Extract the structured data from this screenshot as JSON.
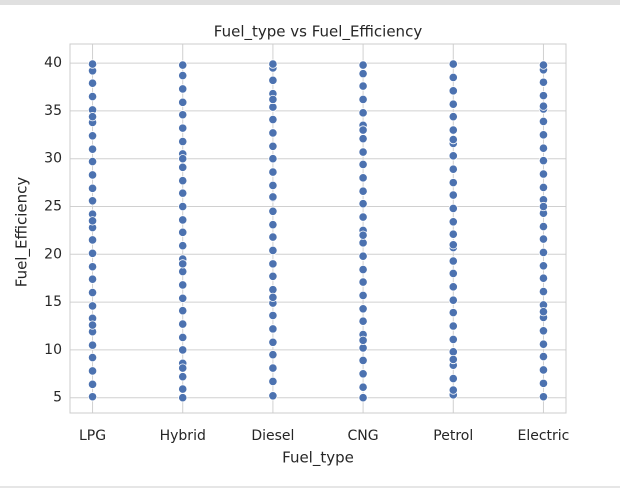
{
  "chart_data": {
    "type": "scatter",
    "title": "Fuel_type vs Fuel_Efficiency",
    "x_label": "Fuel_type",
    "y_label": "Fuel_Efficiency",
    "categories": [
      "LPG",
      "Hybrid",
      "Diesel",
      "CNG",
      "Petrol",
      "Electric"
    ],
    "color": "#4c72b0",
    "values": [
      [
        5.1,
        6.4,
        7.8,
        9.2,
        10.5,
        11.9,
        13.3,
        14.6,
        16.0,
        17.4,
        18.7,
        20.1,
        21.5,
        22.8,
        24.2,
        25.6,
        26.9,
        28.3,
        29.7,
        31.0,
        32.4,
        33.8,
        35.1,
        36.5,
        37.9,
        39.2,
        39.9,
        12.6,
        23.5,
        34.4
      ],
      [
        5.0,
        5.9,
        7.2,
        8.6,
        10.0,
        11.3,
        12.7,
        14.1,
        15.4,
        16.8,
        18.2,
        19.5,
        20.9,
        22.3,
        23.6,
        25.0,
        26.4,
        27.7,
        29.1,
        30.5,
        31.8,
        33.2,
        34.6,
        35.9,
        37.3,
        38.7,
        39.8,
        8.1,
        19.0,
        30.0
      ],
      [
        5.2,
        6.7,
        8.1,
        9.5,
        10.8,
        12.2,
        13.6,
        14.9,
        16.3,
        17.7,
        19.0,
        20.4,
        21.8,
        23.1,
        24.5,
        25.9,
        27.2,
        28.6,
        30.0,
        31.3,
        32.7,
        34.1,
        35.4,
        36.8,
        38.2,
        39.5,
        39.9,
        15.5,
        26.0,
        36.2
      ],
      [
        5.0,
        6.1,
        7.5,
        8.9,
        10.2,
        11.6,
        13.0,
        14.3,
        15.7,
        17.1,
        18.4,
        19.8,
        21.2,
        22.5,
        23.9,
        25.3,
        26.6,
        28.0,
        29.4,
        30.7,
        32.1,
        33.5,
        34.8,
        36.2,
        37.6,
        38.9,
        39.8,
        11.0,
        22.0,
        33.0
      ],
      [
        5.3,
        5.8,
        7.0,
        8.4,
        9.8,
        11.1,
        12.5,
        13.9,
        15.2,
        16.6,
        18.0,
        19.3,
        20.7,
        22.1,
        23.4,
        24.8,
        26.2,
        27.5,
        28.9,
        30.3,
        31.6,
        33.0,
        34.4,
        35.7,
        37.1,
        38.5,
        39.9,
        9.0,
        21.0,
        32.0
      ],
      [
        5.1,
        6.5,
        7.9,
        9.3,
        10.6,
        12.0,
        13.4,
        14.7,
        16.1,
        17.5,
        18.8,
        20.2,
        21.6,
        22.9,
        24.3,
        25.7,
        27.0,
        28.4,
        29.8,
        31.1,
        32.5,
        33.9,
        35.2,
        36.6,
        38.0,
        39.3,
        39.8,
        14.0,
        25.0,
        35.5
      ]
    ],
    "ylim": [
      3.4,
      42.0
    ],
    "yticks": [
      5,
      10,
      15,
      20,
      25,
      30,
      35,
      40
    ],
    "grid": true
  }
}
